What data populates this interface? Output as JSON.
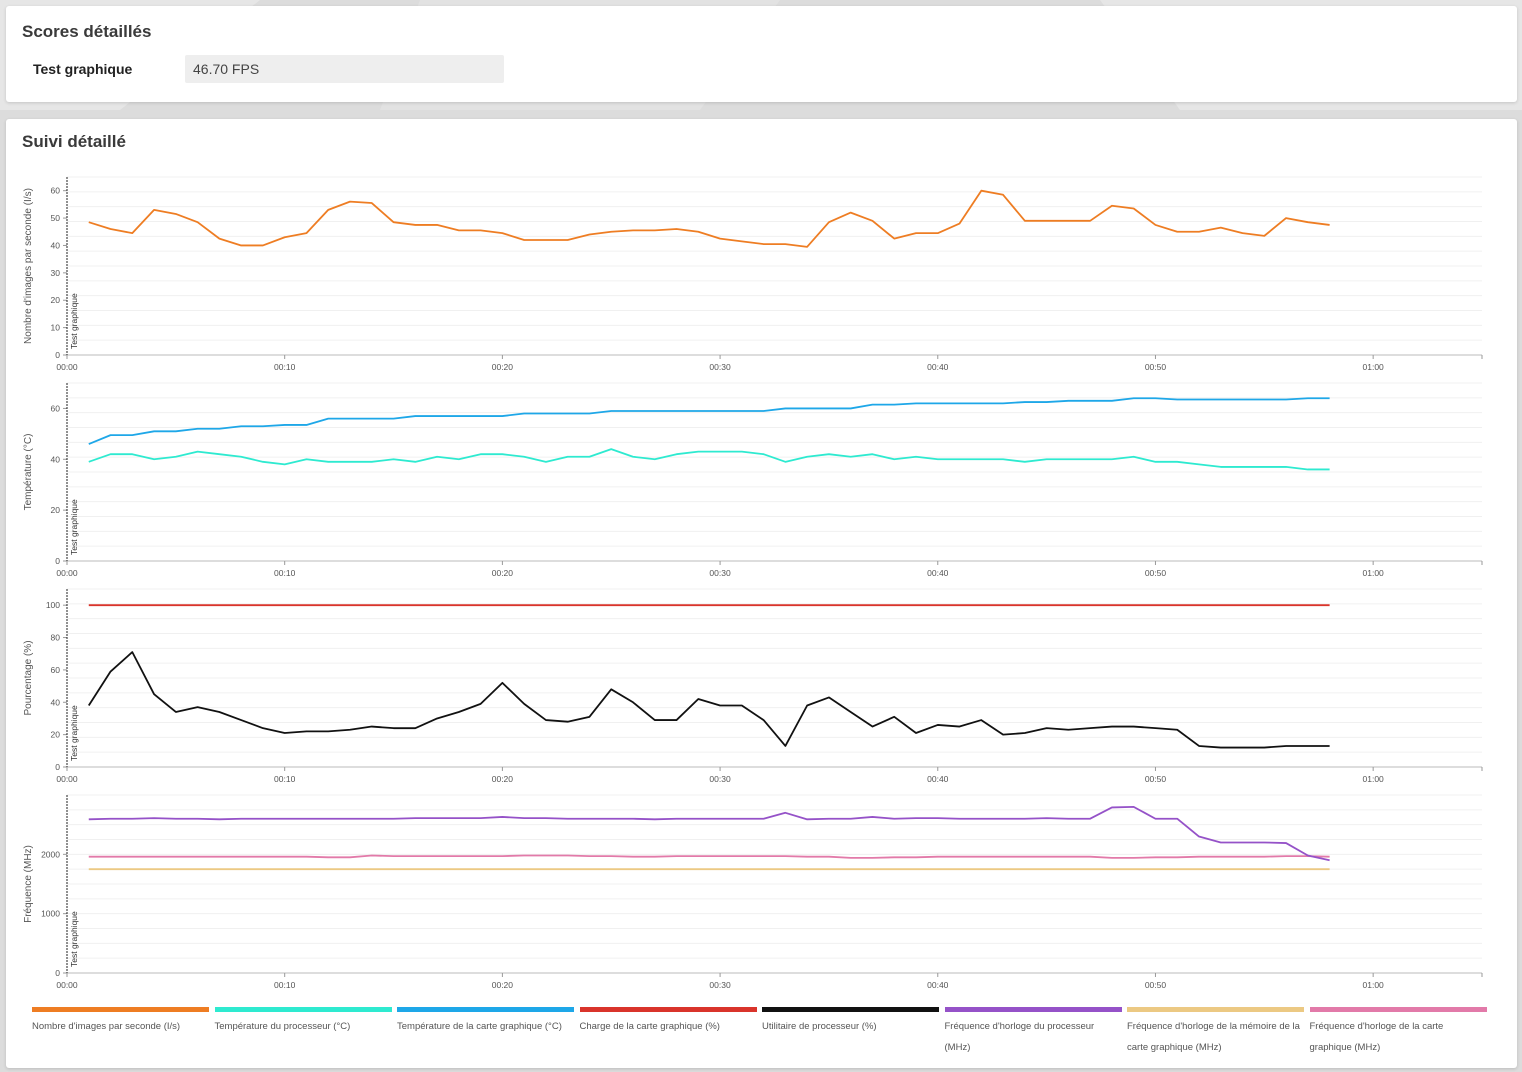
{
  "scores": {
    "title": "Scores détaillés",
    "label": "Test graphique",
    "value": "46.70 FPS"
  },
  "tracking": {
    "title": "Suivi détaillé"
  },
  "marker_label": "Test graphique",
  "chart_data": [
    {
      "type": "line",
      "ylabel": "Nombre d'images par seconde (I/s)",
      "xlabel": "",
      "ylim": [
        0,
        65
      ],
      "yticks": [
        0,
        10,
        20,
        30,
        40,
        50,
        60
      ],
      "xlim": [
        0,
        65
      ],
      "xticks": [
        "00:00",
        "00:10",
        "00:20",
        "00:30",
        "00:40",
        "00:50",
        "01:00"
      ],
      "grid": true,
      "series": [
        {
          "name": "Nombre d'images par seconde (I/s)",
          "color": "#ee7d23",
          "x": [
            1,
            2,
            3,
            4,
            5,
            6,
            7,
            8,
            9,
            10,
            11,
            12,
            13,
            14,
            15,
            16,
            17,
            18,
            19,
            20,
            21,
            22,
            23,
            24,
            25,
            26,
            27,
            28,
            29,
            30,
            31,
            32,
            33,
            34,
            35,
            36,
            37,
            38,
            39,
            40,
            41,
            42,
            43,
            44,
            45,
            46,
            47,
            48,
            49,
            50,
            51,
            52,
            53,
            54,
            55,
            56,
            57,
            58
          ],
          "values": [
            48.5,
            46,
            44.5,
            53,
            51.5,
            48.5,
            42.5,
            40,
            40,
            43,
            44.5,
            53,
            56,
            55.5,
            48.5,
            47.5,
            47.5,
            45.5,
            45.5,
            44.5,
            42,
            42,
            42,
            44,
            45,
            45.5,
            45.5,
            46,
            45,
            42.5,
            41.5,
            40.5,
            40.5,
            39.5,
            48.5,
            52,
            49,
            42.5,
            44.5,
            44.5,
            48,
            60,
            58.5,
            49,
            49,
            49,
            49,
            54.5,
            53.5,
            47.5,
            45,
            45,
            46.5,
            44.5,
            43.5,
            50,
            48.5,
            47.5
          ]
        }
      ]
    },
    {
      "type": "line",
      "ylabel": "Température (°C)",
      "xlabel": "",
      "ylim": [
        0,
        70
      ],
      "yticks": [
        0,
        20,
        40,
        60
      ],
      "xlim": [
        0,
        65
      ],
      "xticks": [
        "00:00",
        "00:10",
        "00:20",
        "00:30",
        "00:40",
        "00:50",
        "01:00"
      ],
      "grid": true,
      "series": [
        {
          "name": "Température de la carte graphique (°C)",
          "color": "#1ea7e8",
          "x": [
            1,
            2,
            3,
            4,
            5,
            6,
            7,
            8,
            9,
            10,
            11,
            12,
            13,
            14,
            15,
            16,
            17,
            18,
            19,
            20,
            21,
            22,
            23,
            24,
            25,
            26,
            27,
            28,
            29,
            30,
            31,
            32,
            33,
            34,
            35,
            36,
            37,
            38,
            39,
            40,
            41,
            42,
            43,
            44,
            45,
            46,
            47,
            48,
            49,
            50,
            51,
            52,
            53,
            54,
            55,
            56,
            57,
            58
          ],
          "values": [
            46,
            49.5,
            49.5,
            51,
            51,
            52,
            52,
            53,
            53,
            53.5,
            53.5,
            56,
            56,
            56,
            56,
            57,
            57,
            57,
            57,
            57,
            58,
            58,
            58,
            58,
            59,
            59,
            59,
            59,
            59,
            59,
            59,
            59,
            60,
            60,
            60,
            60,
            61.5,
            61.5,
            62,
            62,
            62,
            62,
            62,
            62.5,
            62.5,
            63,
            63,
            63,
            64,
            64,
            63.5,
            63.5,
            63.5,
            63.5,
            63.5,
            63.5,
            64,
            64
          ]
        },
        {
          "name": "Température du processeur (°C)",
          "color": "#2eead0",
          "x": [
            1,
            2,
            3,
            4,
            5,
            6,
            7,
            8,
            9,
            10,
            11,
            12,
            13,
            14,
            15,
            16,
            17,
            18,
            19,
            20,
            21,
            22,
            23,
            24,
            25,
            26,
            27,
            28,
            29,
            30,
            31,
            32,
            33,
            34,
            35,
            36,
            37,
            38,
            39,
            40,
            41,
            42,
            43,
            44,
            45,
            46,
            47,
            48,
            49,
            50,
            51,
            52,
            53,
            54,
            55,
            56,
            57,
            58
          ],
          "values": [
            39,
            42,
            42,
            40,
            41,
            43,
            42,
            41,
            39,
            38,
            40,
            39,
            39,
            39,
            40,
            39,
            41,
            40,
            42,
            42,
            41,
            39,
            41,
            41,
            44,
            41,
            40,
            42,
            43,
            43,
            43,
            42,
            39,
            41,
            42,
            41,
            42,
            40,
            41,
            40,
            40,
            40,
            40,
            39,
            40,
            40,
            40,
            40,
            41,
            39,
            39,
            38,
            37,
            37,
            37,
            37,
            36,
            36
          ]
        }
      ]
    },
    {
      "type": "line",
      "ylabel": "Pourcentage (%)",
      "xlabel": "",
      "ylim": [
        0,
        110
      ],
      "yticks": [
        0,
        20,
        40,
        60,
        80,
        100
      ],
      "xlim": [
        0,
        65
      ],
      "xticks": [
        "00:00",
        "00:10",
        "00:20",
        "00:30",
        "00:40",
        "00:50",
        "01:00"
      ],
      "grid": true,
      "series": [
        {
          "name": "Charge de la carte graphique (%)",
          "color": "#d9342b",
          "x": [
            1,
            58
          ],
          "values": [
            100,
            100
          ]
        },
        {
          "name": "Utilitaire de processeur (%)",
          "color": "#111111",
          "x": [
            1,
            2,
            3,
            4,
            5,
            6,
            7,
            8,
            9,
            10,
            11,
            12,
            13,
            14,
            15,
            16,
            17,
            18,
            19,
            20,
            21,
            22,
            23,
            24,
            25,
            26,
            27,
            28,
            29,
            30,
            31,
            32,
            33,
            34,
            35,
            36,
            37,
            38,
            39,
            40,
            41,
            42,
            43,
            44,
            45,
            46,
            47,
            48,
            49,
            50,
            51,
            52,
            53,
            54,
            55,
            56,
            57,
            58
          ],
          "values": [
            38,
            59,
            71,
            45,
            34,
            37,
            34,
            29,
            24,
            21,
            22,
            22,
            23,
            25,
            24,
            24,
            30,
            34,
            39,
            52,
            39,
            29,
            28,
            31,
            48,
            40,
            29,
            29,
            42,
            38,
            38,
            29,
            13,
            38,
            43,
            34,
            25,
            31,
            21,
            26,
            25,
            29,
            20,
            21,
            24,
            23,
            24,
            25,
            25,
            24,
            23,
            13,
            12,
            12,
            12,
            13,
            13,
            13
          ]
        }
      ]
    },
    {
      "type": "line",
      "ylabel": "Fréquence (MHz)",
      "xlabel": "",
      "ylim": [
        0,
        3000
      ],
      "yticks": [
        0,
        1000,
        2000
      ],
      "xlim": [
        0,
        65
      ],
      "xticks": [
        "00:00",
        "00:10",
        "00:20",
        "00:30",
        "00:40",
        "00:50",
        "01:00"
      ],
      "grid": true,
      "series": [
        {
          "name": "Fréquence d'horloge de la mémoire de la carte graphique (MHz)",
          "color": "#ecc983",
          "x": [
            1,
            58
          ],
          "values": [
            1750,
            1750
          ]
        },
        {
          "name": "Fréquence d'horloge de la carte graphique (MHz)",
          "color": "#e27aa9",
          "x": [
            1,
            2,
            3,
            4,
            5,
            6,
            7,
            8,
            9,
            10,
            11,
            12,
            13,
            14,
            15,
            16,
            17,
            18,
            19,
            20,
            21,
            22,
            23,
            24,
            25,
            26,
            27,
            28,
            29,
            30,
            31,
            32,
            33,
            34,
            35,
            36,
            37,
            38,
            39,
            40,
            41,
            42,
            43,
            44,
            45,
            46,
            47,
            48,
            49,
            50,
            51,
            52,
            53,
            54,
            55,
            56,
            57,
            58
          ],
          "values": [
            1960,
            1960,
            1960,
            1960,
            1960,
            1960,
            1960,
            1960,
            1960,
            1960,
            1960,
            1950,
            1950,
            1980,
            1970,
            1970,
            1970,
            1970,
            1970,
            1970,
            1980,
            1980,
            1980,
            1970,
            1970,
            1960,
            1960,
            1970,
            1970,
            1970,
            1970,
            1970,
            1970,
            1960,
            1960,
            1940,
            1940,
            1950,
            1950,
            1960,
            1960,
            1960,
            1960,
            1960,
            1960,
            1960,
            1960,
            1940,
            1940,
            1950,
            1950,
            1960,
            1960,
            1960,
            1960,
            1970,
            1970,
            1960
          ]
        },
        {
          "name": "Fréquence d'horloge du processeur (MHz)",
          "color": "#9552c8",
          "x": [
            1,
            2,
            3,
            4,
            5,
            6,
            7,
            8,
            9,
            10,
            11,
            12,
            13,
            14,
            15,
            16,
            17,
            18,
            19,
            20,
            21,
            22,
            23,
            24,
            25,
            26,
            27,
            28,
            29,
            30,
            31,
            32,
            33,
            34,
            35,
            36,
            37,
            38,
            39,
            40,
            41,
            42,
            43,
            44,
            45,
            46,
            47,
            48,
            49,
            50,
            51,
            52,
            53,
            54,
            55,
            56,
            57,
            58
          ],
          "values": [
            2590,
            2600,
            2600,
            2610,
            2600,
            2600,
            2590,
            2600,
            2600,
            2600,
            2600,
            2600,
            2600,
            2600,
            2600,
            2610,
            2610,
            2610,
            2610,
            2630,
            2610,
            2610,
            2600,
            2600,
            2600,
            2600,
            2590,
            2600,
            2600,
            2600,
            2600,
            2600,
            2700,
            2590,
            2600,
            2600,
            2630,
            2600,
            2610,
            2610,
            2600,
            2600,
            2600,
            2600,
            2610,
            2600,
            2600,
            2790,
            2800,
            2600,
            2600,
            2300,
            2200,
            2200,
            2200,
            2190,
            1980,
            1900
          ]
        }
      ]
    }
  ],
  "legend": [
    {
      "label": "Nombre d'images par seconde (I/s)",
      "color": "#ee7d23"
    },
    {
      "label": "Température du processeur (°C)",
      "color": "#2eead0"
    },
    {
      "label": "Température de la carte graphique (°C)",
      "color": "#1ea7e8"
    },
    {
      "label": "Charge de la carte graphique (%)",
      "color": "#d9342b"
    },
    {
      "label": "Utilitaire de processeur (%)",
      "color": "#111111"
    },
    {
      "label": "Fréquence d'horloge du processeur (MHz)",
      "color": "#9552c8"
    },
    {
      "label": "Fréquence d'horloge de la mémoire de la carte graphique (MHz)",
      "color": "#ecc983"
    },
    {
      "label": "Fréquence d'horloge de la carte graphique (MHz)",
      "color": "#e27aa9"
    }
  ]
}
